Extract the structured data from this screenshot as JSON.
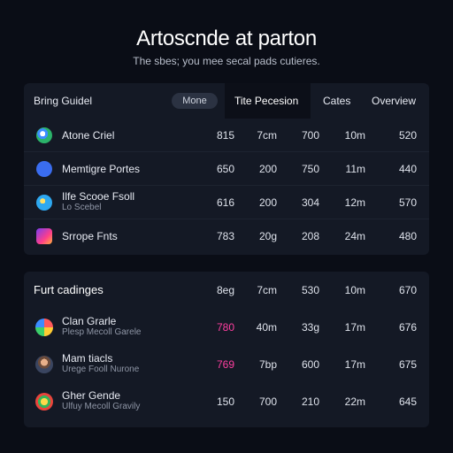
{
  "header": {
    "title": "Artoscnde at parton",
    "subtitle": "The sbes; you mee secal pads cutieres."
  },
  "table1": {
    "title": "Bring Guidel",
    "pill": "Mone",
    "columns": [
      "Tite Pecesion",
      "Cates",
      "Overview"
    ],
    "rows": [
      {
        "name": "Atone Criel",
        "sub": "",
        "icon": "chrome-icon",
        "v": [
          "815",
          "7cm",
          "700",
          "10m",
          "520"
        ]
      },
      {
        "name": "Memtigre Portes",
        "sub": "",
        "icon": "app-icon",
        "v": [
          "650",
          "200",
          "750",
          "11m",
          "440"
        ]
      },
      {
        "name": "Ilfe Scooe Fsoll",
        "sub": "Lo Scebel",
        "icon": "globe-icon",
        "v": [
          "616",
          "200",
          "304",
          "12m",
          "570"
        ]
      },
      {
        "name": "Srrope Fnts",
        "sub": "",
        "icon": "instagram-icon",
        "v": [
          "783",
          "20g",
          "208",
          "24m",
          "480"
        ]
      }
    ]
  },
  "table2": {
    "title": "Furt cadinges",
    "headers": [
      "8eg",
      "7cm",
      "530",
      "10m",
      "670"
    ],
    "rows": [
      {
        "name": "Clan Grarle",
        "sub": "Plesp Mecoll Garele",
        "icon": "photos-icon",
        "v": [
          "780",
          "40m",
          "33g",
          "17m",
          "676"
        ],
        "pink": true
      },
      {
        "name": "Mam tiacls",
        "sub": "Urege Fooll Nurone",
        "icon": "user-avatar-icon",
        "v": [
          "769",
          "7bp",
          "600",
          "17m",
          "675"
        ],
        "pink": true
      },
      {
        "name": "Gher Gende",
        "sub": "Ulfuy Mecoll Gravily",
        "icon": "maps-icon",
        "v": [
          "150",
          "700",
          "210",
          "22m",
          "645"
        ],
        "pink": false
      }
    ]
  }
}
